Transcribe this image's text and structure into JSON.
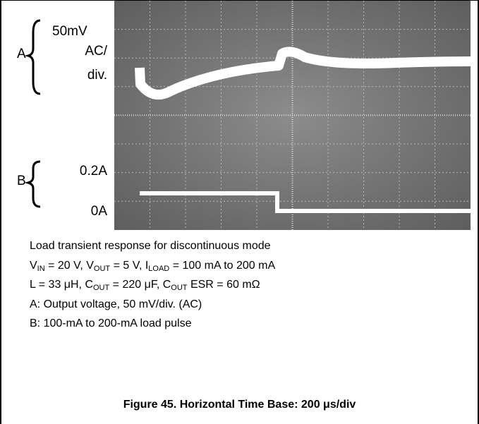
{
  "scope": {
    "trace_a": {
      "name": "A",
      "scale": "50mV",
      "coupling": "AC/",
      "unit": "div."
    },
    "trace_b": {
      "name": "B",
      "high": "0.2A",
      "low": "0A"
    }
  },
  "caption": {
    "lines": [
      [
        {
          "text": "Load transient response for discontinuous mode"
        }
      ],
      [
        {
          "text": "V"
        },
        {
          "sub": "IN"
        },
        {
          "text": " = 20 V, V"
        },
        {
          "sub": "OUT"
        },
        {
          "text": " = 5 V, I"
        },
        {
          "sub": "LOAD"
        },
        {
          "text": " = 100 mA to 200 mA"
        }
      ],
      [
        {
          "text": "L = 33 μH, C"
        },
        {
          "sub": "OUT"
        },
        {
          "text": " = 220 μF, C"
        },
        {
          "sub": "OUT"
        },
        {
          "text": " ESR = 60 mΩ"
        }
      ],
      [
        {
          "text": "A: Output voltage, 50 mV/div. (AC)"
        }
      ],
      [
        {
          "text": "B: 100-mA to 200-mA load pulse"
        }
      ]
    ]
  },
  "figure_title": "Figure 45. Horizontal Time Base: 200 μs/div"
}
